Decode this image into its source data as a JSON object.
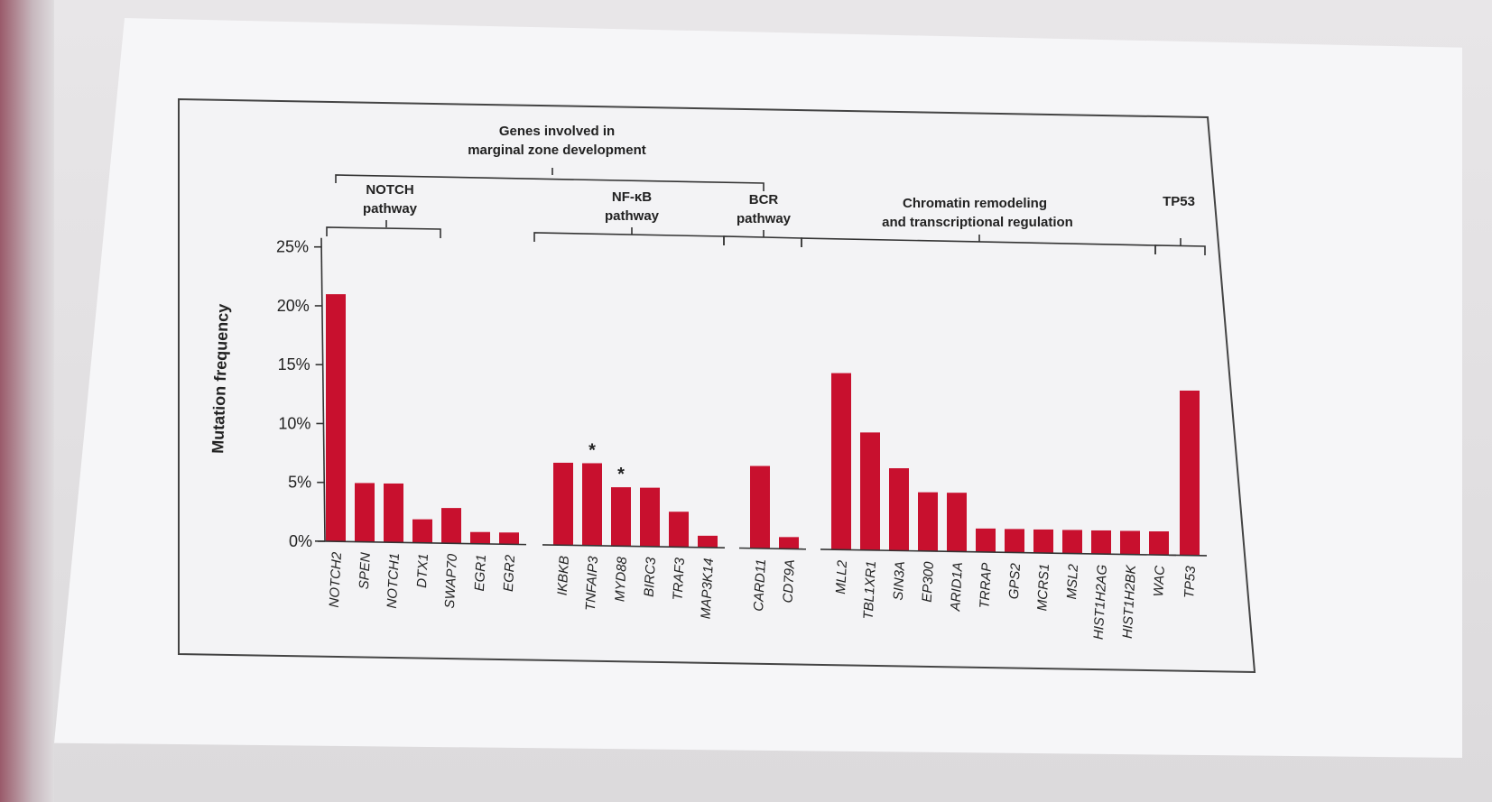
{
  "chart_data": {
    "type": "bar",
    "title": "Genes involved in marginal zone development",
    "ylabel": "Mutation frequency",
    "ylim": [
      0,
      25
    ],
    "yticks": [
      "0%",
      "5%",
      "10%",
      "15%",
      "20%",
      "25%"
    ],
    "bar_color": "#c8102e",
    "categories": [
      "NOTCH2",
      "SPEN",
      "NOTCH1",
      "DTX1",
      "SWAP70",
      "EGR1",
      "EGR2",
      "IKBKB",
      "TNFAIP3",
      "MYD88",
      "BIRC3",
      "TRAF3",
      "MAP3K14",
      "CARD11",
      "CD79A",
      "MLL2",
      "TBL1XR1",
      "SIN3A",
      "EP300",
      "ARID1A",
      "TRRAP",
      "GPS2",
      "MCRS1",
      "MSL2",
      "HIST1H2AG",
      "HIST1H2BK",
      "WAC",
      "TP53"
    ],
    "values": [
      21,
      5,
      5,
      2,
      3,
      1,
      1,
      7,
      7,
      5,
      5,
      3,
      1,
      7,
      1,
      15,
      10,
      7,
      5,
      5,
      2,
      2,
      2,
      2,
      2,
      2,
      2,
      14
    ],
    "asterisks": [
      "*",
      "*"
    ],
    "groups": [
      {
        "label_line1": "NOTCH",
        "label_line2": "pathway"
      },
      {
        "label_line1": "NF-κB",
        "label_line2": "pathway"
      },
      {
        "label_line1": "BCR",
        "label_line2": "pathway"
      },
      {
        "label_line1": "Chromatin remodeling",
        "label_line2": "and transcriptional regulation"
      },
      {
        "label_line1": "TP53",
        "label_line2": ""
      }
    ],
    "supergroup": {
      "label_line1": "Genes involved in",
      "label_line2": "marginal zone development"
    }
  }
}
